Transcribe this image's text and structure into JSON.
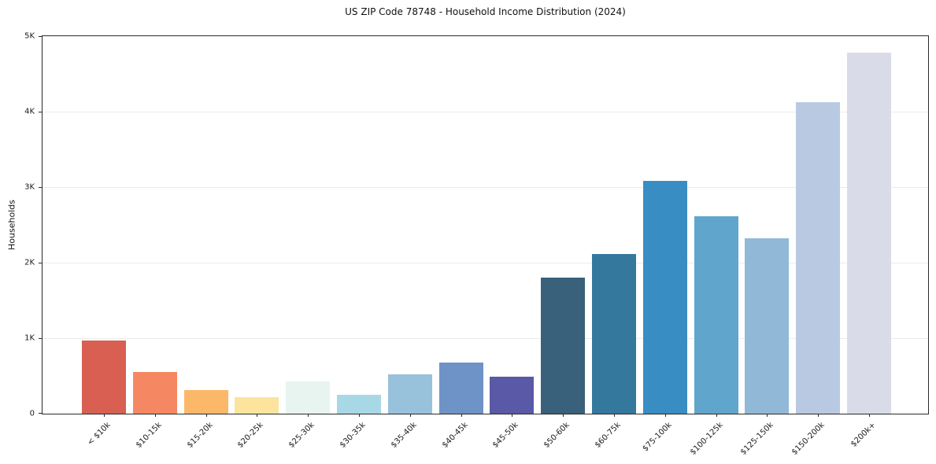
{
  "chart_data": {
    "type": "bar",
    "title": "US ZIP Code 78748 - Household Income Distribution (2024)",
    "xlabel": "",
    "ylabel": "Households",
    "ylim": [
      0,
      5000
    ],
    "ytick_values": [
      0,
      1000,
      2000,
      3000,
      4000,
      5000
    ],
    "ytick_labels": [
      "0",
      "1K",
      "2K",
      "3K",
      "4K",
      "5K"
    ],
    "grid": "horizontal",
    "legend_position": "none",
    "categories": [
      "< $10k",
      "$10-15k",
      "$15-20k",
      "$20-25k",
      "$25-30k",
      "$30-35k",
      "$35-40k",
      "$40-45k",
      "$45-50k",
      "$50-60k",
      "$60-75k",
      "$75-100k",
      "$100-125k",
      "$125-150k",
      "$150-200k",
      "$200k+"
    ],
    "values": [
      965,
      550,
      315,
      220,
      430,
      250,
      525,
      680,
      490,
      1800,
      2110,
      3085,
      2610,
      2325,
      4130,
      4785
    ],
    "bar_colors": [
      "#d95f52",
      "#f58862",
      "#fbb869",
      "#fce49c",
      "#e7f4f0",
      "#a8d8e6",
      "#98c1dc",
      "#6e93c6",
      "#5959a7",
      "#3a617c",
      "#35789d",
      "#388ec3",
      "#60a6cc",
      "#92b8d8",
      "#b9c9e2",
      "#d9dbe9"
    ],
    "colors": {
      "background": "#ffffff",
      "spine": "#2a2a2a",
      "gridline": "#ebebeb",
      "text": "#1a1a1a"
    }
  }
}
